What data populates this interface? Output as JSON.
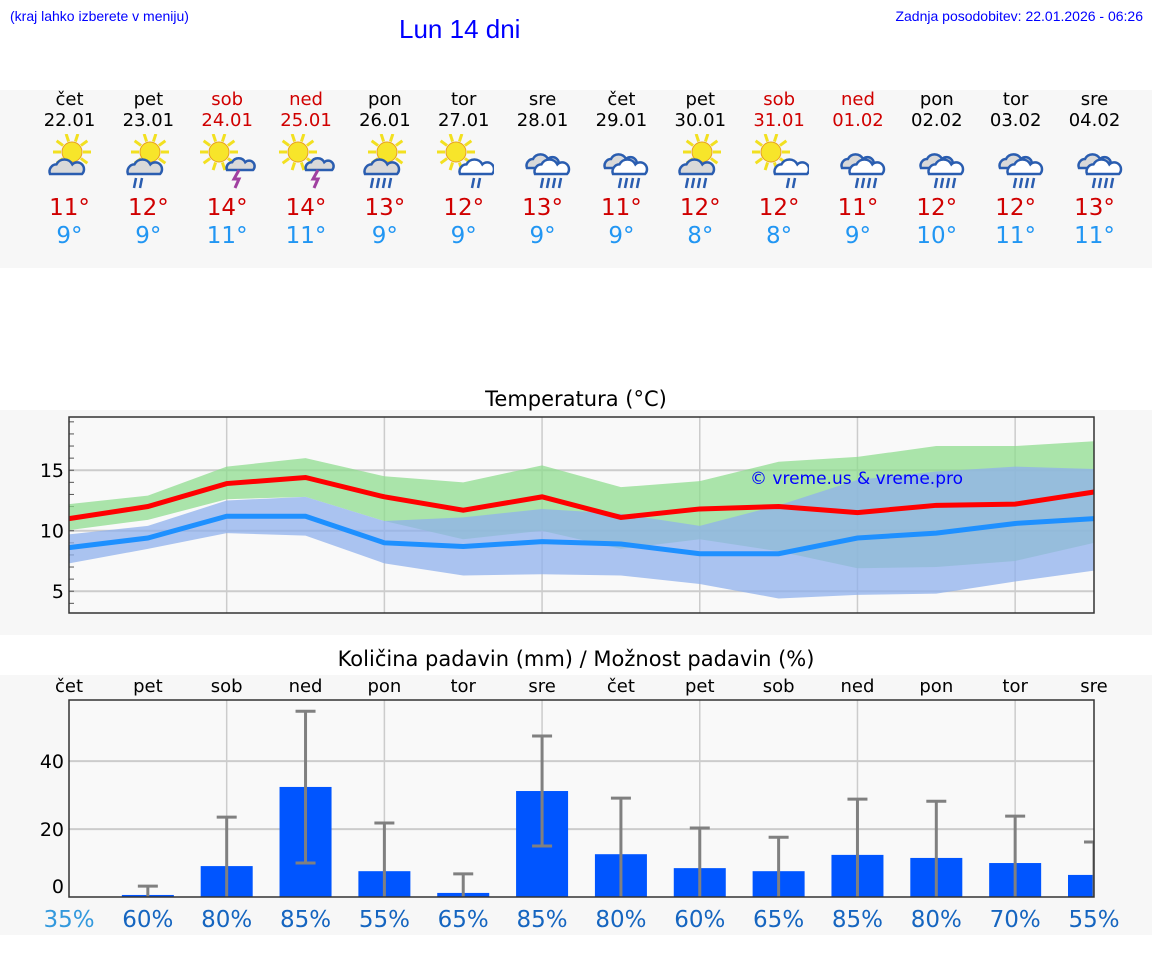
{
  "header": {
    "hint": "(kraj lahko izberete v meniju)",
    "title": "Lun 14 dni",
    "updated": "Zadnja posodobitev: 22.01.2026 - 06:26"
  },
  "colors": {
    "max": "#d00000",
    "min": "#2196f3",
    "bar": "#0055ff",
    "green_band": "#a8e6a8",
    "blue_band": "#adc6f2"
  },
  "days": [
    {
      "name": "čet",
      "date": "22.01",
      "weekend": false,
      "icon": "sun-cloud",
      "max": "11°",
      "min": "9°"
    },
    {
      "name": "pet",
      "date": "23.01",
      "weekend": false,
      "icon": "sun-cloud-light-rain",
      "max": "12°",
      "min": "9°"
    },
    {
      "name": "sob",
      "date": "24.01",
      "weekend": true,
      "icon": "sun-thunder",
      "max": "14°",
      "min": "11°"
    },
    {
      "name": "ned",
      "date": "25.01",
      "weekend": true,
      "icon": "sun-thunder",
      "max": "14°",
      "min": "11°"
    },
    {
      "name": "pon",
      "date": "26.01",
      "weekend": false,
      "icon": "sun-cloud-rain",
      "max": "13°",
      "min": "9°"
    },
    {
      "name": "tor",
      "date": "27.01",
      "weekend": false,
      "icon": "sun-white-cloud-rain",
      "max": "12°",
      "min": "9°"
    },
    {
      "name": "sre",
      "date": "28.01",
      "weekend": false,
      "icon": "cloud-rain",
      "max": "13°",
      "min": "9°"
    },
    {
      "name": "čet",
      "date": "29.01",
      "weekend": false,
      "icon": "cloud-rain",
      "max": "11°",
      "min": "9°"
    },
    {
      "name": "pet",
      "date": "30.01",
      "weekend": false,
      "icon": "sun-cloud-rain",
      "max": "12°",
      "min": "8°"
    },
    {
      "name": "sob",
      "date": "31.01",
      "weekend": true,
      "icon": "sun-white-cloud-rain",
      "max": "12°",
      "min": "8°"
    },
    {
      "name": "ned",
      "date": "01.02",
      "weekend": true,
      "icon": "cloud-rain",
      "max": "11°",
      "min": "9°"
    },
    {
      "name": "pon",
      "date": "02.02",
      "weekend": false,
      "icon": "cloud-rain",
      "max": "12°",
      "min": "10°"
    },
    {
      "name": "tor",
      "date": "03.02",
      "weekend": false,
      "icon": "cloud-rain",
      "max": "12°",
      "min": "11°"
    },
    {
      "name": "sre",
      "date": "04.02",
      "weekend": false,
      "icon": "cloud-rain",
      "max": "13°",
      "min": "11°"
    }
  ],
  "chart_data": [
    {
      "type": "line",
      "title": "Temperatura (°C)",
      "ylim": [
        3.2,
        19.4
      ],
      "yticks": [
        5,
        10,
        15
      ],
      "watermark": "© vreme.us & vreme.pro",
      "grid": true,
      "series": [
        {
          "name": "max",
          "values": [
            11,
            12,
            13.9,
            14.4,
            12.8,
            11.7,
            12.8,
            11.1,
            11.8,
            12,
            11.5,
            12.1,
            12.2,
            13.2
          ]
        },
        {
          "name": "min",
          "values": [
            8.6,
            9.4,
            11.2,
            11.2,
            9,
            8.7,
            9.1,
            8.9,
            8.1,
            8.1,
            9.4,
            9.8,
            10.6,
            11
          ]
        },
        {
          "name": "max_range_high",
          "values": [
            12.2,
            12.9,
            15.3,
            16,
            14.5,
            14,
            15.4,
            13.6,
            14.1,
            15.7,
            16.1,
            17,
            17,
            17.4
          ]
        },
        {
          "name": "max_range_low",
          "values": [
            10.05,
            10.9,
            12.6,
            12.8,
            10.8,
            9.3,
            10,
            8.5,
            9.3,
            8.3,
            6.9,
            7,
            7.5,
            9
          ]
        },
        {
          "name": "min_range_high",
          "values": [
            9.7,
            10.4,
            12.5,
            12.8,
            10.8,
            11.1,
            11.8,
            11.4,
            10.4,
            12.1,
            14.2,
            14.9,
            15.3,
            15.1
          ]
        },
        {
          "name": "min_range_low",
          "values": [
            7.3,
            8.5,
            9.8,
            9.6,
            7.3,
            6.3,
            6.4,
            6.3,
            5.6,
            4.4,
            4.7,
            4.8,
            5.8,
            6.7
          ]
        }
      ]
    },
    {
      "type": "bar",
      "title": "Količina padavin (mm) / Možnost padavin (%)",
      "ylim": [
        0,
        58
      ],
      "yticks": [
        0,
        20,
        40
      ],
      "grid": true,
      "categories": [
        "čet",
        "pet",
        "sob",
        "ned",
        "pon",
        "tor",
        "sre",
        "čet",
        "pet",
        "sob",
        "ned",
        "pon",
        "tor",
        "sre"
      ],
      "values": [
        0,
        0.6,
        9.1,
        32.4,
        7.6,
        1.2,
        31.2,
        12.6,
        8.5,
        7.6,
        12.4,
        11.5,
        10,
        6.5
      ],
      "err_low": [
        0,
        0,
        0,
        10,
        0,
        0,
        15,
        0,
        0,
        0,
        0,
        0,
        0,
        0
      ],
      "err_high": [
        0,
        3.2,
        23.5,
        54.7,
        21.8,
        6.8,
        47.4,
        29.1,
        20.3,
        17.6,
        28.8,
        28.2,
        23.8,
        16.2
      ],
      "probability": [
        "35%",
        "60%",
        "80%",
        "85%",
        "55%",
        "65%",
        "85%",
        "80%",
        "60%",
        "65%",
        "85%",
        "80%",
        "70%",
        "55%"
      ]
    }
  ]
}
